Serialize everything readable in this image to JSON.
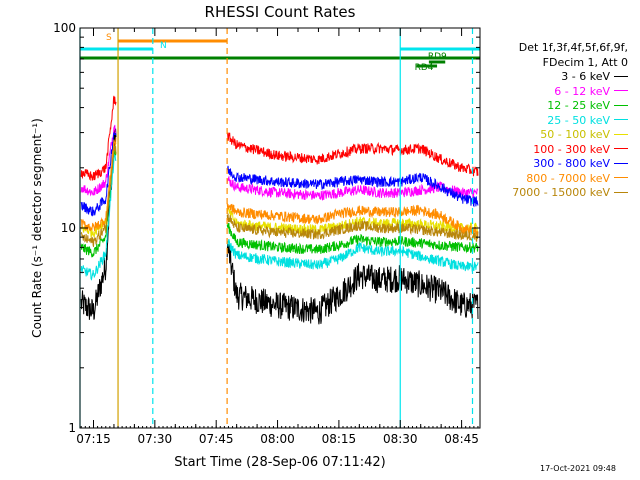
{
  "chart_data": {
    "type": "line",
    "title": "RHESSI Count Rates",
    "xlabel": "Start Time (28-Sep-06 07:11:42)",
    "ylabel": "Count Rate (s⁻¹ detector segment⁻¹)",
    "yscale": "log",
    "ylim": [
      1,
      100
    ],
    "xlim": [
      "07:11:42",
      "08:49:30"
    ],
    "x_tick_labels": [
      "07:15",
      "07:30",
      "07:45",
      "08:00",
      "08:15",
      "08:30",
      "08:45"
    ],
    "y_tick_labels": [
      "1",
      "10",
      "100"
    ],
    "grid": false,
    "legend_position": "right",
    "legend_header": [
      "Det 1f,3f,4f,5f,6f,9f,",
      "FDecim 1, Att 0"
    ],
    "series": [
      {
        "name": "3 - 6 keV",
        "color": "#000000",
        "x": [
          "07:12",
          "07:15",
          "07:18",
          "07:20",
          "07:47",
          "07:50",
          "08:00",
          "08:10",
          "08:15",
          "08:20",
          "08:25",
          "08:30",
          "08:35",
          "08:40",
          "08:45",
          "08:49"
        ],
        "values": [
          4.2,
          3.8,
          6.5,
          28,
          10,
          4.6,
          4.1,
          3.8,
          4.6,
          5.8,
          5.5,
          5.6,
          5.2,
          4.8,
          4.1,
          4.1
        ]
      },
      {
        "name": "6 - 12 keV",
        "color": "#ff00ff",
        "x": [
          "07:12",
          "07:15",
          "07:18",
          "07:20",
          "07:47",
          "07:50",
          "08:00",
          "08:10",
          "08:15",
          "08:20",
          "08:25",
          "08:30",
          "08:35",
          "08:40",
          "08:45",
          "08:49"
        ],
        "values": [
          16,
          15,
          17,
          32,
          18,
          16,
          15,
          14.5,
          15,
          15.5,
          15,
          15,
          15.5,
          16,
          15,
          15
        ]
      },
      {
        "name": "12 - 25 keV",
        "color": "#00c000",
        "x": [
          "07:12",
          "07:15",
          "07:18",
          "07:20",
          "07:47",
          "07:50",
          "08:00",
          "08:10",
          "08:15",
          "08:20",
          "08:25",
          "08:30",
          "08:35",
          "08:40",
          "08:45",
          "08:49"
        ],
        "values": [
          8,
          7.5,
          9,
          24,
          11,
          8.5,
          8,
          7.8,
          8.2,
          8.8,
          8.5,
          8.6,
          8.4,
          8.2,
          8,
          8
        ]
      },
      {
        "name": "25 - 50 keV",
        "color": "#00e0e0",
        "x": [
          "07:12",
          "07:15",
          "07:18",
          "07:20",
          "07:47",
          "07:50",
          "08:00",
          "08:10",
          "08:15",
          "08:20",
          "08:25",
          "08:30",
          "08:35",
          "08:40",
          "08:45",
          "08:49"
        ],
        "values": [
          6.2,
          5.8,
          7.5,
          22,
          9,
          7.3,
          6.8,
          6.5,
          7,
          8,
          7.6,
          7.7,
          7.2,
          6.8,
          6.4,
          6.4
        ]
      },
      {
        "name": "50 - 100 keV",
        "color": "#e8e000",
        "x": [
          "07:12",
          "07:15",
          "07:18",
          "07:20",
          "07:47",
          "07:50",
          "08:00",
          "08:10",
          "08:15",
          "08:20",
          "08:25",
          "08:30",
          "08:35",
          "08:40",
          "08:45",
          "08:49"
        ],
        "values": [
          10,
          9.5,
          11,
          26,
          13,
          10.5,
          10,
          9.8,
          10.2,
          10.8,
          10.5,
          10.6,
          10.4,
          10.2,
          10,
          10
        ]
      },
      {
        "name": "100 - 300 keV",
        "color": "#ff0000",
        "x": [
          "07:12",
          "07:15",
          "07:18",
          "07:20",
          "07:47",
          "07:50",
          "08:00",
          "08:10",
          "08:15",
          "08:20",
          "08:25",
          "08:30",
          "08:35",
          "08:40",
          "08:45",
          "08:49"
        ],
        "values": [
          19,
          18,
          20,
          44,
          30,
          26,
          23,
          22,
          23.5,
          25,
          25,
          24.5,
          25,
          22,
          20,
          19
        ]
      },
      {
        "name": "300 - 800 keV",
        "color": "#0000ff",
        "x": [
          "07:12",
          "07:15",
          "07:18",
          "07:20",
          "07:47",
          "07:50",
          "08:00",
          "08:10",
          "08:15",
          "08:20",
          "08:25",
          "08:30",
          "08:35",
          "08:40",
          "08:45",
          "08:49"
        ],
        "values": [
          13,
          12,
          14,
          30,
          20,
          18,
          17,
          16.5,
          17,
          17.5,
          17,
          17,
          18,
          16,
          14,
          13.5
        ]
      },
      {
        "name": "800 - 7000 keV",
        "color": "#ff8c00",
        "x": [
          "07:12",
          "07:15",
          "07:18",
          "07:20",
          "07:47",
          "07:50",
          "08:00",
          "08:10",
          "08:15",
          "08:20",
          "08:25",
          "08:30",
          "08:35",
          "08:40",
          "08:45",
          "08:49"
        ],
        "values": [
          10.5,
          10,
          11,
          27,
          13.5,
          12,
          11.5,
          11,
          11.8,
          12.2,
          12,
          12,
          12.3,
          11.5,
          10,
          9.5
        ]
      },
      {
        "name": "7000 - 15000 keV",
        "color": "#b8860b",
        "x": [
          "07:12",
          "07:15",
          "07:18",
          "07:20",
          "07:47",
          "07:50",
          "08:00",
          "08:10",
          "08:15",
          "08:20",
          "08:25",
          "08:30",
          "08:35",
          "08:40",
          "08:45",
          "08:49"
        ],
        "values": [
          9,
          8.5,
          10,
          25,
          12,
          10,
          9.5,
          9.3,
          9.8,
          10.3,
          10,
          10,
          9.8,
          9.5,
          9.2,
          9.1
        ]
      }
    ],
    "vertical_markers": [
      {
        "time": "07:11:42",
        "color": "#00e5ee",
        "style": "solid"
      },
      {
        "time": "07:21:00",
        "color": "#d2a000",
        "style": "solid"
      },
      {
        "time": "07:29:30",
        "color": "#00e5ee",
        "style": "dashed"
      },
      {
        "time": "07:47:40",
        "color": "#ff8c00",
        "style": "dashed"
      },
      {
        "time": "08:30:00",
        "color": "#00e5ee",
        "style": "solid"
      },
      {
        "time": "08:47:40",
        "color": "#00e5ee",
        "style": "dashed"
      }
    ],
    "flag_bars": [
      {
        "label": "S",
        "color": "#ff8c00",
        "start": "07:21:00",
        "end": "07:47:40",
        "level": 1
      },
      {
        "label": "N",
        "color": "#00e5ee",
        "start": "07:11:42",
        "end": "07:29:30",
        "level": 2
      },
      {
        "label": "",
        "color": "#00e5ee",
        "start": "08:30:00",
        "end": "08:49:30",
        "level": 2
      },
      {
        "label": "RD9",
        "color": "#008000",
        "start": "08:37:00",
        "end": "08:41:00",
        "level": 3
      },
      {
        "label": "",
        "color": "#008000",
        "start": "07:11:42",
        "end": "08:49:30",
        "level": 4
      },
      {
        "label": "RD4",
        "color": "#008000",
        "start": "08:34:00",
        "end": "08:39:00",
        "level": 5
      }
    ]
  },
  "timestamp": "17-Oct-2021 09:48"
}
